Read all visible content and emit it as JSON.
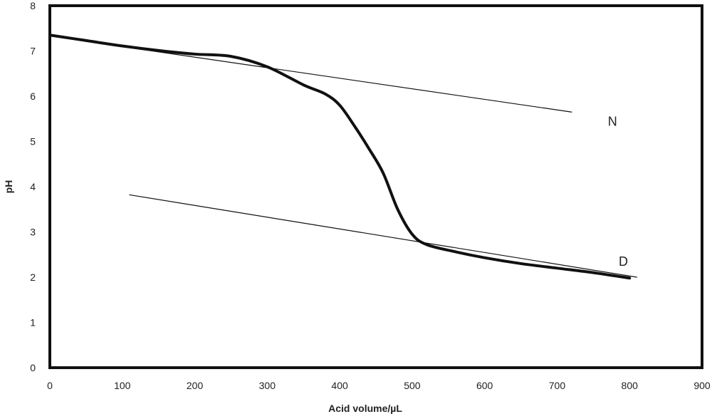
{
  "chart_data": {
    "type": "line",
    "title": "",
    "xlabel": "Acid volume/µL",
    "ylabel": "pH",
    "xlim": [
      0,
      900
    ],
    "ylim": [
      0,
      8
    ],
    "x_ticks": [
      0,
      100,
      200,
      300,
      400,
      500,
      600,
      700,
      800,
      900
    ],
    "y_ticks": [
      0,
      1,
      2,
      3,
      4,
      5,
      6,
      7,
      8
    ],
    "grid": false,
    "legend": "none",
    "series": [
      {
        "role": "titration-curve",
        "style": "thick",
        "color": "#111111",
        "x": [
          0,
          50,
          100,
          150,
          200,
          250,
          300,
          350,
          380,
          400,
          420,
          440,
          460,
          480,
          500,
          520,
          560,
          600,
          650,
          700,
          750,
          800
        ],
        "y": [
          7.35,
          7.23,
          7.11,
          7.01,
          6.93,
          6.88,
          6.65,
          6.25,
          6.05,
          5.8,
          5.35,
          4.85,
          4.3,
          3.5,
          2.95,
          2.72,
          2.56,
          2.43,
          2.3,
          2.2,
          2.1,
          1.98
        ]
      },
      {
        "role": "neutral-baseline",
        "style": "thin",
        "color": "#111111",
        "x": [
          0,
          720
        ],
        "y": [
          7.33,
          5.65
        ]
      },
      {
        "role": "dissociated-baseline",
        "style": "thin",
        "color": "#111111",
        "x": [
          110,
          810
        ],
        "y": [
          3.82,
          2.0
        ]
      }
    ],
    "annotations": [
      {
        "text": "N",
        "x": 770,
        "y": 5.35
      },
      {
        "text": "D",
        "x": 785,
        "y": 2.25
      }
    ]
  }
}
